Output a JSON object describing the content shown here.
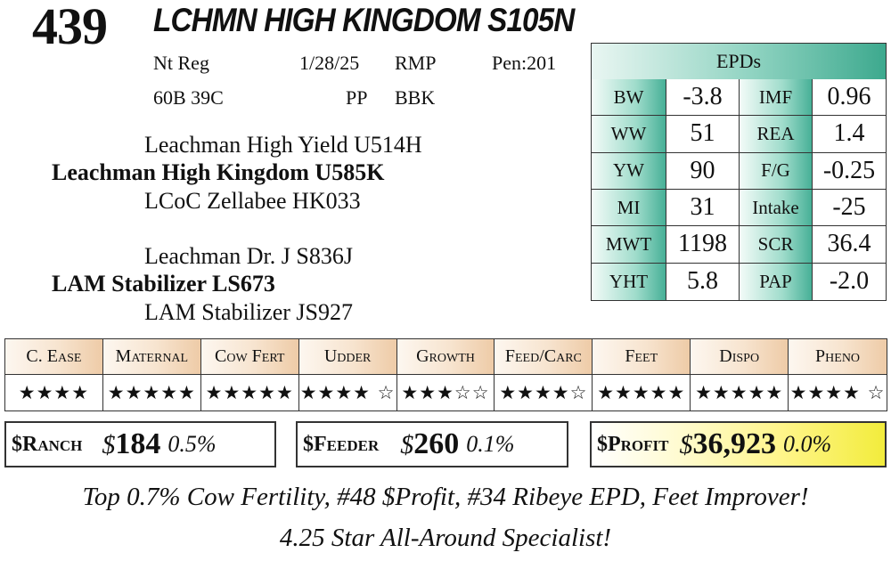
{
  "lot_number": "439",
  "animal_name": "LCHMN HIGH KINGDOM S105N",
  "info": {
    "registration": "Nt Reg",
    "birth_date": "1/28/25",
    "code1": "RMP",
    "pen": "Pen:201",
    "tattoo": "60B 39C",
    "code2": "PP",
    "code3": "BBK"
  },
  "pedigree": {
    "sire_sire": "Leachman High Yield U514H",
    "sire": "Leachman High Kingdom U585K",
    "sire_dam": "LCoC Zellabee HK033",
    "dam_sire": "Leachman Dr. J S836J",
    "dam": "LAM Stabilizer LS673",
    "dam_dam": "LAM Stabilizer JS927"
  },
  "epds": {
    "title": "EPDs",
    "rows": [
      {
        "l1": "BW",
        "v1": "-3.8",
        "l2": "IMF",
        "v2": "0.96"
      },
      {
        "l1": "WW",
        "v1": "51",
        "l2": "REA",
        "v2": "1.4"
      },
      {
        "l1": "YW",
        "v1": "90",
        "l2": "F/G",
        "v2": "-0.25"
      },
      {
        "l1": "MI",
        "v1": "31",
        "l2": "Intake",
        "v2": "-25"
      },
      {
        "l1": "MWT",
        "v1": "1198",
        "l2": "SCR",
        "v2": "36.4"
      },
      {
        "l1": "YHT",
        "v1": "5.8",
        "l2": "PAP",
        "v2": "-2.0"
      }
    ]
  },
  "star_ratings": [
    {
      "label": "C. Ease",
      "stars": "★★★★",
      "value": 4
    },
    {
      "label": "Maternal",
      "stars": "★★★★★",
      "value": 4.75
    },
    {
      "label": "Cow Fert",
      "stars": "★★★★★",
      "value": 5
    },
    {
      "label": "Udder",
      "stars": "★★★★ ☆",
      "value": 3.75
    },
    {
      "label": "Growth",
      "stars": "★★★☆☆",
      "value": 3
    },
    {
      "label": "Feed/Carc",
      "stars": "★★★★☆",
      "value": 4
    },
    {
      "label": "Feet",
      "stars": "★★★★★",
      "value": 5
    },
    {
      "label": "Dispo",
      "stars": "★★★★★",
      "value": 4.75
    },
    {
      "label": "Pheno",
      "stars": "★★★★ ☆",
      "value": 3.75
    }
  ],
  "indexes": {
    "ranch": {
      "label": "$Ranch",
      "currency": "$",
      "value": "184",
      "percent": "0.5%"
    },
    "feeder": {
      "label": "$Feeder",
      "currency": "$",
      "value": "260",
      "percent": "0.1%"
    },
    "profit": {
      "label": "$Profit",
      "currency": "$",
      "value": "36,923",
      "percent": "0.0%"
    }
  },
  "comments": {
    "line1": "Top 0.7% Cow Fertility, #48 $Profit, #34 Ribeye EPD, Feet Improver!",
    "line2": "4.25 Star All-Around Specialist!"
  },
  "colors": {
    "epd_accent": "#3da98e",
    "star_header_accent": "#eecba7",
    "profit_highlight": "#f2ec3c"
  }
}
